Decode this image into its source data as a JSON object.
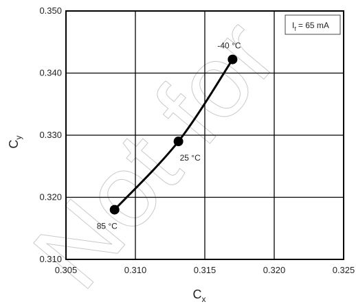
{
  "chart_data": {
    "type": "line",
    "title": "",
    "xlabel": "C",
    "xlabel_subscript": "x",
    "ylabel": "C",
    "ylabel_subscript": "y",
    "xlim": [
      0.305,
      0.325
    ],
    "ylim": [
      0.31,
      0.35
    ],
    "xticks": [
      0.305,
      0.31,
      0.315,
      0.32,
      0.325
    ],
    "xtick_labels": [
      "0.305",
      "0.310",
      "0.315",
      "0.320",
      "0.325"
    ],
    "yticks": [
      0.31,
      0.32,
      0.33,
      0.34,
      0.35
    ],
    "ytick_labels": [
      "0.310",
      "0.320",
      "0.330",
      "0.340",
      "0.350"
    ],
    "grid": true,
    "series": [
      {
        "x": [
          0.3085,
          0.3131,
          0.317
        ],
        "y": [
          0.318,
          0.329,
          0.3422
        ],
        "labels": [
          "85 °C",
          "25 °C",
          "-40 °C"
        ]
      }
    ],
    "legend_box": {
      "text": "I",
      "subscript": "f",
      "value": " = 65 mA",
      "placement": "top-right"
    },
    "watermark": "Not for"
  },
  "colors": {
    "line": "#000000",
    "grid": "#000000",
    "watermark": "#c8c8c8"
  }
}
